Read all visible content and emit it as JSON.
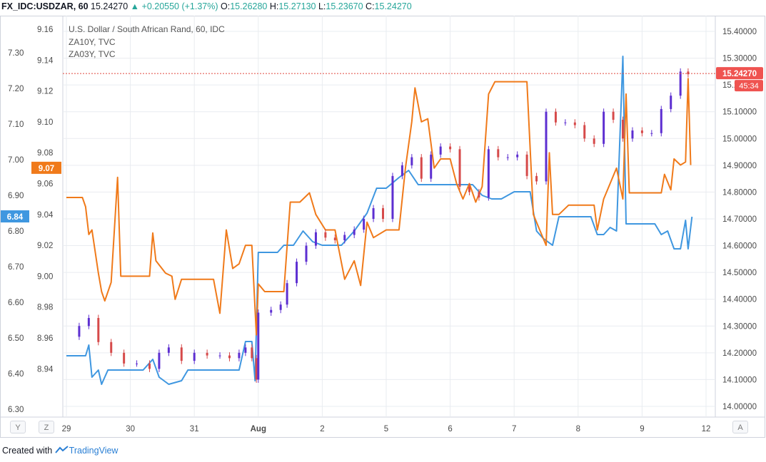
{
  "header": {
    "symbol": "FX_IDC:USDZAR, 60",
    "last": "15.24270",
    "change_arrow": "▲",
    "change": "+0.20550 (+1.37%)",
    "o_label": "O:",
    "o_value": "15.26280",
    "h_label": "H:",
    "h_value": "15.27130",
    "l_label": "L:",
    "l_value": "15.23670",
    "c_label": "C:",
    "c_value": "15.24270"
  },
  "legend": {
    "main": "U.S. Dollar / South African Rand, 60, IDC",
    "s1": "ZA10Y, TVC",
    "s2": "ZA03Y, TVC"
  },
  "buttons": {
    "y": "Y",
    "z": "Z",
    "a": "A"
  },
  "footer": {
    "created_with": "Created with",
    "brand": "TradingView"
  },
  "colors": {
    "up": "#5d2fd1",
    "down": "#d64a4a",
    "za10y": "#3f97e0",
    "za03y": "#f07a1a",
    "grid": "#e9ecf0",
    "axis_text": "#4a4a4a",
    "last_line": "#e0483e"
  },
  "chart_data": {
    "type": "line",
    "x_ticks": [
      "29",
      "30",
      "31",
      "Aug",
      "2",
      "5",
      "6",
      "7",
      "8",
      "9",
      "12"
    ],
    "axes": {
      "za10y": {
        "ticks": [
          "7.30",
          "7.20",
          "7.10",
          "7.00",
          "6.90",
          "6.80",
          "6.70",
          "6.60",
          "6.50",
          "6.40",
          "6.30"
        ],
        "range": [
          6.3,
          7.3
        ]
      },
      "za03y": {
        "ticks": [
          "9.16",
          "9.14",
          "9.12",
          "9.10",
          "9.08",
          "9.06",
          "9.04",
          "9.02",
          "9.00",
          "8.98",
          "8.96",
          "8.94"
        ],
        "range": [
          8.94,
          9.16
        ]
      },
      "usdzar": {
        "ticks": [
          "15.40000",
          "15.30000",
          "15.20000",
          "15.10000",
          "15.00000",
          "14.90000",
          "14.80000",
          "14.70000",
          "14.60000",
          "14.50000",
          "14.40000",
          "14.30000",
          "14.20000",
          "14.10000",
          "14.00000"
        ],
        "range": [
          14.0,
          15.4
        ]
      }
    },
    "badges": {
      "za10y_last": "6.84",
      "za03y_last": "9.07",
      "usdzar_last": "15.24270",
      "countdown": "45:34"
    },
    "series": [
      {
        "name": "U.S. Dollar / South African Rand, 60, IDC",
        "type": "candlestick",
        "axis": "usdzar",
        "points": [
          {
            "t": 0.0,
            "v": 14.26
          },
          {
            "t": 0.2,
            "v": 14.3
          },
          {
            "t": 0.35,
            "v": 14.33
          },
          {
            "t": 0.5,
            "v": 14.24
          },
          {
            "t": 0.7,
            "v": 14.2
          },
          {
            "t": 0.9,
            "v": 14.16
          },
          {
            "t": 1.1,
            "v": 14.16
          },
          {
            "t": 1.3,
            "v": 14.14
          },
          {
            "t": 1.45,
            "v": 14.2
          },
          {
            "t": 1.6,
            "v": 14.22
          },
          {
            "t": 1.8,
            "v": 14.17
          },
          {
            "t": 2.0,
            "v": 14.2
          },
          {
            "t": 2.2,
            "v": 14.19
          },
          {
            "t": 2.4,
            "v": 14.19
          },
          {
            "t": 2.55,
            "v": 14.18
          },
          {
            "t": 2.7,
            "v": 14.2
          },
          {
            "t": 2.8,
            "v": 14.22
          },
          {
            "t": 2.9,
            "v": 14.18
          },
          {
            "t": 2.97,
            "v": 14.1
          },
          {
            "t": 3.0,
            "v": 14.35
          },
          {
            "t": 3.2,
            "v": 14.36
          },
          {
            "t": 3.35,
            "v": 14.38
          },
          {
            "t": 3.45,
            "v": 14.46
          },
          {
            "t": 3.6,
            "v": 14.54
          },
          {
            "t": 3.75,
            "v": 14.6
          },
          {
            "t": 3.9,
            "v": 14.65
          },
          {
            "t": 4.05,
            "v": 14.63
          },
          {
            "t": 4.2,
            "v": 14.62
          },
          {
            "t": 4.35,
            "v": 14.64
          },
          {
            "t": 4.5,
            "v": 14.66
          },
          {
            "t": 4.65,
            "v": 14.7
          },
          {
            "t": 4.8,
            "v": 14.74
          },
          {
            "t": 4.95,
            "v": 14.7
          },
          {
            "t": 5.1,
            "v": 14.86
          },
          {
            "t": 5.25,
            "v": 14.9
          },
          {
            "t": 5.4,
            "v": 14.93
          },
          {
            "t": 5.55,
            "v": 14.85
          },
          {
            "t": 5.7,
            "v": 14.94
          },
          {
            "t": 5.85,
            "v": 14.97
          },
          {
            "t": 6.0,
            "v": 14.96
          },
          {
            "t": 6.15,
            "v": 14.82
          },
          {
            "t": 6.3,
            "v": 14.8
          },
          {
            "t": 6.45,
            "v": 14.78
          },
          {
            "t": 6.6,
            "v": 14.96
          },
          {
            "t": 6.75,
            "v": 14.93
          },
          {
            "t": 6.9,
            "v": 14.93
          },
          {
            "t": 7.05,
            "v": 14.94
          },
          {
            "t": 7.2,
            "v": 14.86
          },
          {
            "t": 7.35,
            "v": 14.84
          },
          {
            "t": 7.5,
            "v": 15.1
          },
          {
            "t": 7.65,
            "v": 15.06
          },
          {
            "t": 7.8,
            "v": 15.06
          },
          {
            "t": 7.95,
            "v": 15.05
          },
          {
            "t": 8.1,
            "v": 15.0
          },
          {
            "t": 8.25,
            "v": 14.98
          },
          {
            "t": 8.4,
            "v": 15.1
          },
          {
            "t": 8.55,
            "v": 15.07
          },
          {
            "t": 8.7,
            "v": 15.0
          },
          {
            "t": 8.85,
            "v": 15.03
          },
          {
            "t": 9.0,
            "v": 15.02
          },
          {
            "t": 9.15,
            "v": 15.02
          },
          {
            "t": 9.3,
            "v": 15.11
          },
          {
            "t": 9.45,
            "v": 15.16
          },
          {
            "t": 9.6,
            "v": 15.25
          },
          {
            "t": 9.72,
            "v": 15.24
          }
        ]
      },
      {
        "name": "ZA10Y, TVC",
        "axis": "za10y",
        "points": [
          {
            "t": 0.0,
            "v": 6.45
          },
          {
            "t": 0.3,
            "v": 6.45
          },
          {
            "t": 0.35,
            "v": 6.48
          },
          {
            "t": 0.4,
            "v": 6.39
          },
          {
            "t": 0.5,
            "v": 6.41
          },
          {
            "t": 0.55,
            "v": 6.37
          },
          {
            "t": 0.65,
            "v": 6.41
          },
          {
            "t": 0.8,
            "v": 6.41
          },
          {
            "t": 1.0,
            "v": 6.41
          },
          {
            "t": 1.2,
            "v": 6.41
          },
          {
            "t": 1.35,
            "v": 6.44
          },
          {
            "t": 1.45,
            "v": 6.39
          },
          {
            "t": 1.6,
            "v": 6.37
          },
          {
            "t": 1.8,
            "v": 6.38
          },
          {
            "t": 1.9,
            "v": 6.41
          },
          {
            "t": 2.2,
            "v": 6.41
          },
          {
            "t": 2.5,
            "v": 6.41
          },
          {
            "t": 2.7,
            "v": 6.41
          },
          {
            "t": 2.8,
            "v": 6.49
          },
          {
            "t": 2.9,
            "v": 6.49
          },
          {
            "t": 2.95,
            "v": 6.38
          },
          {
            "t": 3.0,
            "v": 6.74
          },
          {
            "t": 3.1,
            "v": 6.74
          },
          {
            "t": 3.3,
            "v": 6.74
          },
          {
            "t": 3.4,
            "v": 6.76
          },
          {
            "t": 3.55,
            "v": 6.76
          },
          {
            "t": 3.7,
            "v": 6.8
          },
          {
            "t": 3.85,
            "v": 6.77
          },
          {
            "t": 4.0,
            "v": 6.76
          },
          {
            "t": 4.3,
            "v": 6.76
          },
          {
            "t": 4.5,
            "v": 6.8
          },
          {
            "t": 4.7,
            "v": 6.85
          },
          {
            "t": 4.85,
            "v": 6.92
          },
          {
            "t": 5.0,
            "v": 6.92
          },
          {
            "t": 5.2,
            "v": 6.95
          },
          {
            "t": 5.35,
            "v": 6.97
          },
          {
            "t": 5.5,
            "v": 6.93
          },
          {
            "t": 5.65,
            "v": 6.93
          },
          {
            "t": 5.8,
            "v": 6.93
          },
          {
            "t": 6.0,
            "v": 6.93
          },
          {
            "t": 6.2,
            "v": 6.93
          },
          {
            "t": 6.35,
            "v": 6.93
          },
          {
            "t": 6.5,
            "v": 6.9
          },
          {
            "t": 6.65,
            "v": 6.89
          },
          {
            "t": 6.8,
            "v": 6.89
          },
          {
            "t": 7.0,
            "v": 6.91
          },
          {
            "t": 7.25,
            "v": 6.91
          },
          {
            "t": 7.35,
            "v": 6.8
          },
          {
            "t": 7.45,
            "v": 6.78
          },
          {
            "t": 7.6,
            "v": 6.76
          },
          {
            "t": 7.7,
            "v": 6.84
          },
          {
            "t": 7.85,
            "v": 6.84
          },
          {
            "t": 8.0,
            "v": 6.84
          },
          {
            "t": 8.2,
            "v": 6.84
          },
          {
            "t": 8.3,
            "v": 6.79
          },
          {
            "t": 8.4,
            "v": 6.79
          },
          {
            "t": 8.5,
            "v": 6.81
          },
          {
            "t": 8.6,
            "v": 6.8
          },
          {
            "t": 8.7,
            "v": 7.29
          },
          {
            "t": 8.75,
            "v": 6.82
          },
          {
            "t": 8.9,
            "v": 6.82
          },
          {
            "t": 9.1,
            "v": 6.82
          },
          {
            "t": 9.2,
            "v": 6.82
          },
          {
            "t": 9.3,
            "v": 6.79
          },
          {
            "t": 9.4,
            "v": 6.8
          },
          {
            "t": 9.5,
            "v": 6.75
          },
          {
            "t": 9.6,
            "v": 6.75
          },
          {
            "t": 9.68,
            "v": 6.83
          },
          {
            "t": 9.72,
            "v": 6.75
          },
          {
            "t": 9.78,
            "v": 6.84
          }
        ]
      },
      {
        "name": "ZA03Y, TVC",
        "axis": "za03y",
        "points": [
          {
            "t": 0.0,
            "v": 9.051
          },
          {
            "t": 0.25,
            "v": 9.051
          },
          {
            "t": 0.3,
            "v": 9.045
          },
          {
            "t": 0.35,
            "v": 9.027
          },
          {
            "t": 0.4,
            "v": 9.03
          },
          {
            "t": 0.5,
            "v": 9.002
          },
          {
            "t": 0.55,
            "v": 8.99
          },
          {
            "t": 0.6,
            "v": 8.984
          },
          {
            "t": 0.7,
            "v": 8.996
          },
          {
            "t": 0.8,
            "v": 9.064
          },
          {
            "t": 0.85,
            "v": 9.0
          },
          {
            "t": 0.95,
            "v": 9.0
          },
          {
            "t": 1.15,
            "v": 9.0
          },
          {
            "t": 1.3,
            "v": 9.0
          },
          {
            "t": 1.35,
            "v": 9.028
          },
          {
            "t": 1.4,
            "v": 9.01
          },
          {
            "t": 1.55,
            "v": 9.002
          },
          {
            "t": 1.65,
            "v": 9.0
          },
          {
            "t": 1.7,
            "v": 8.985
          },
          {
            "t": 1.8,
            "v": 8.998
          },
          {
            "t": 2.0,
            "v": 8.998
          },
          {
            "t": 2.2,
            "v": 8.998
          },
          {
            "t": 2.3,
            "v": 8.998
          },
          {
            "t": 2.4,
            "v": 8.976
          },
          {
            "t": 2.5,
            "v": 9.03
          },
          {
            "t": 2.6,
            "v": 9.005
          },
          {
            "t": 2.7,
            "v": 9.008
          },
          {
            "t": 2.8,
            "v": 9.02
          },
          {
            "t": 2.9,
            "v": 9.02
          },
          {
            "t": 2.97,
            "v": 8.962
          },
          {
            "t": 3.0,
            "v": 8.995
          },
          {
            "t": 3.1,
            "v": 8.99
          },
          {
            "t": 3.25,
            "v": 8.99
          },
          {
            "t": 3.4,
            "v": 8.99
          },
          {
            "t": 3.5,
            "v": 9.048
          },
          {
            "t": 3.65,
            "v": 9.048
          },
          {
            "t": 3.8,
            "v": 9.054
          },
          {
            "t": 3.9,
            "v": 9.04
          },
          {
            "t": 4.05,
            "v": 9.03
          },
          {
            "t": 4.2,
            "v": 9.03
          },
          {
            "t": 4.35,
            "v": 8.998
          },
          {
            "t": 4.5,
            "v": 9.01
          },
          {
            "t": 4.6,
            "v": 8.994
          },
          {
            "t": 4.7,
            "v": 9.035
          },
          {
            "t": 4.8,
            "v": 9.025
          },
          {
            "t": 5.0,
            "v": 9.03
          },
          {
            "t": 5.2,
            "v": 9.03
          },
          {
            "t": 5.3,
            "v": 9.07
          },
          {
            "t": 5.4,
            "v": 9.1
          },
          {
            "t": 5.45,
            "v": 9.122
          },
          {
            "t": 5.55,
            "v": 9.1
          },
          {
            "t": 5.65,
            "v": 9.102
          },
          {
            "t": 5.75,
            "v": 9.07
          },
          {
            "t": 5.85,
            "v": 9.076
          },
          {
            "t": 6.0,
            "v": 9.076
          },
          {
            "t": 6.1,
            "v": 9.06
          },
          {
            "t": 6.2,
            "v": 9.05
          },
          {
            "t": 6.3,
            "v": 9.06
          },
          {
            "t": 6.4,
            "v": 9.048
          },
          {
            "t": 6.5,
            "v": 9.058
          },
          {
            "t": 6.6,
            "v": 9.118
          },
          {
            "t": 6.7,
            "v": 9.126
          },
          {
            "t": 6.85,
            "v": 9.126
          },
          {
            "t": 7.0,
            "v": 9.126
          },
          {
            "t": 7.2,
            "v": 9.126
          },
          {
            "t": 7.3,
            "v": 9.04
          },
          {
            "t": 7.4,
            "v": 9.03
          },
          {
            "t": 7.5,
            "v": 9.02
          },
          {
            "t": 7.55,
            "v": 9.08
          },
          {
            "t": 7.6,
            "v": 9.04
          },
          {
            "t": 7.7,
            "v": 9.04
          },
          {
            "t": 7.85,
            "v": 9.046
          },
          {
            "t": 8.0,
            "v": 9.046
          },
          {
            "t": 8.15,
            "v": 9.046
          },
          {
            "t": 8.25,
            "v": 9.046
          },
          {
            "t": 8.3,
            "v": 9.03
          },
          {
            "t": 8.4,
            "v": 9.05
          },
          {
            "t": 8.5,
            "v": 9.06
          },
          {
            "t": 8.6,
            "v": 9.07
          },
          {
            "t": 8.7,
            "v": 9.05
          },
          {
            "t": 8.75,
            "v": 9.118
          },
          {
            "t": 8.8,
            "v": 9.054
          },
          {
            "t": 9.0,
            "v": 9.054
          },
          {
            "t": 9.15,
            "v": 9.054
          },
          {
            "t": 9.3,
            "v": 9.054
          },
          {
            "t": 9.35,
            "v": 9.066
          },
          {
            "t": 9.45,
            "v": 9.056
          },
          {
            "t": 9.5,
            "v": 9.076
          },
          {
            "t": 9.6,
            "v": 9.072
          },
          {
            "t": 9.68,
            "v": 9.074
          },
          {
            "t": 9.72,
            "v": 9.128
          },
          {
            "t": 9.76,
            "v": 9.072
          }
        ]
      }
    ]
  }
}
